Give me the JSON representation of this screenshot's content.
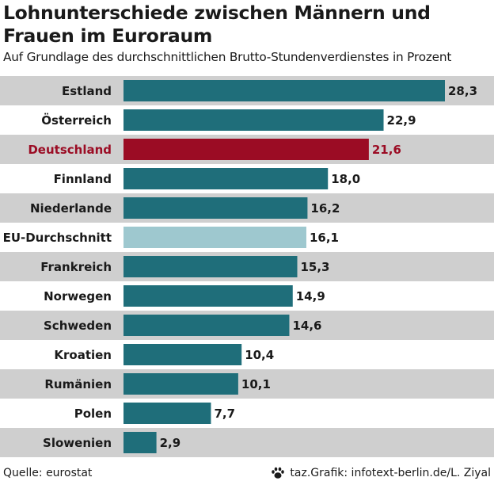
{
  "title": "Lohnunterschiede zwischen Männern und Frauen im Euroraum",
  "subtitle": "Auf Grundlage des durchschnittlichen Brutto-Stundenverdienstes in Prozent",
  "source": "Quelle: eurostat",
  "credit": "taz.Grafik: infotext-berlin.de/L. Ziyal",
  "credit_icon": "paw-icon",
  "colors": {
    "bar": "#1f6e7a",
    "highlight": "#9b0c24",
    "average": "#9ec8cf",
    "stripe_gray": "#cfcfcf",
    "stripe_white": "#ffffff"
  },
  "chart_data": {
    "type": "bar",
    "orientation": "horizontal",
    "categories": [
      "Estland",
      "Österreich",
      "Deutschland",
      "Finnland",
      "Niederlande",
      "EU-Durchschnitt",
      "Frankreich",
      "Norwegen",
      "Schweden",
      "Kroatien",
      "Rumänien",
      "Polen",
      "Slowenien"
    ],
    "values": [
      28.3,
      22.9,
      21.6,
      18.0,
      16.2,
      16.1,
      15.3,
      14.9,
      14.6,
      10.4,
      10.1,
      7.7,
      2.9
    ],
    "value_labels": [
      "28,3",
      "22,9",
      "21,6",
      "18,0",
      "16,2",
      "16,1",
      "15,3",
      "14,9",
      "14,6",
      "10,4",
      "10,1",
      "7,7",
      "2,9"
    ],
    "highlight": "Deutschland",
    "average": "EU-Durchschnitt",
    "xlim": [
      0,
      28.3
    ],
    "grid": false
  }
}
